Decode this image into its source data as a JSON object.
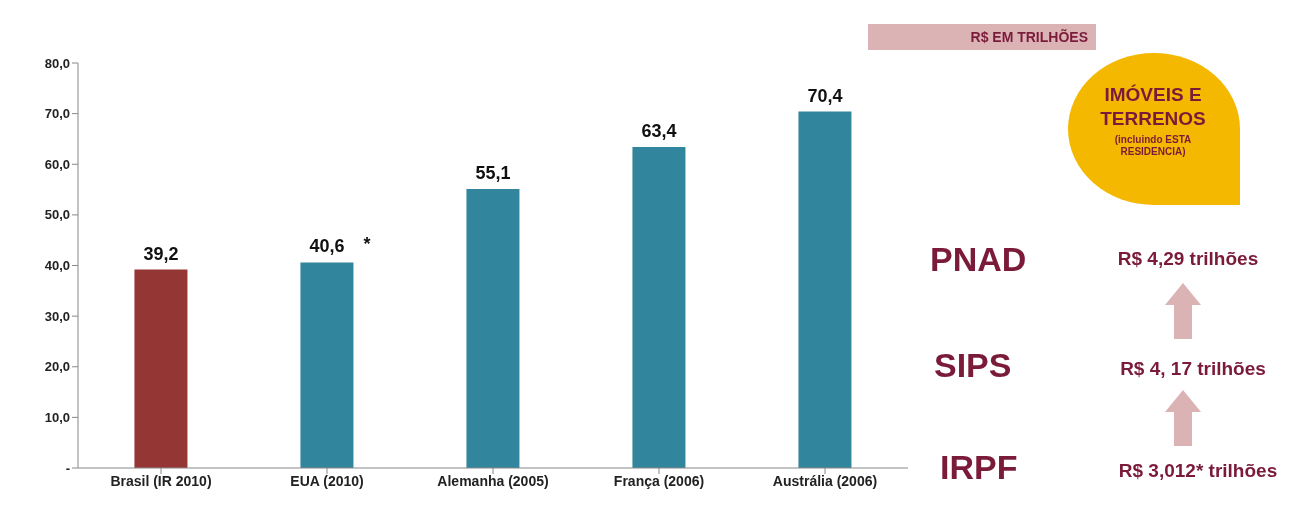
{
  "chart_data": {
    "type": "bar",
    "categories": [
      "Brasil (IR 2010)",
      "EUA (2010)",
      "Alemanha (2005)",
      "França (2006)",
      "Austrália (2006)"
    ],
    "values": [
      39.2,
      40.6,
      55.1,
      63.4,
      70.4
    ],
    "colors": [
      "#943634",
      "#31859c",
      "#31859c",
      "#31859c",
      "#31859c"
    ],
    "value_labels": [
      "39,2",
      "40,6",
      "55,1",
      "63,4",
      "70,4"
    ],
    "ylim": [
      0,
      80
    ],
    "yticks": [
      {
        "value": 0,
        "label": "-"
      },
      {
        "value": 10,
        "label": "10,0"
      },
      {
        "value": 20,
        "label": "20,0"
      },
      {
        "value": 30,
        "label": "30,0"
      },
      {
        "value": 40,
        "label": "40,0"
      },
      {
        "value": 50,
        "label": "50,0"
      },
      {
        "value": 60,
        "label": "60,0"
      },
      {
        "value": 70,
        "label": "70,0"
      },
      {
        "value": 80,
        "label": "80,0"
      }
    ],
    "grid": false,
    "legend": false,
    "annotations": [
      {
        "text": "*",
        "x": "EUA (2010)",
        "y": 40.6
      },
      "R$ EM TRILHÕES",
      "IMÓVEIS E TERRENOS",
      "(incluindo ESTA RESIDENCIA)",
      "PNAD",
      "R$ 4,29 trilhões",
      "SIPS",
      "R$ 4, 17 trilhões",
      "IRPF",
      "R$ 3,012* trilhões"
    ]
  }
}
